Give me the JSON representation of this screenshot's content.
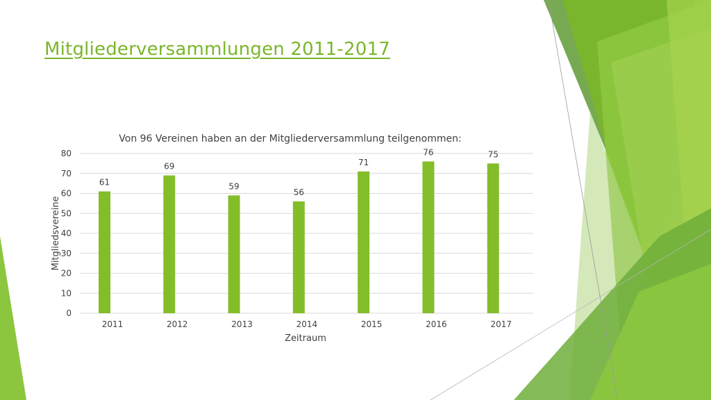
{
  "slide": {
    "title": "Mitgliederversammlungen 2011-2017"
  },
  "theme": {
    "accent": "#7ab62a",
    "bar": "#84bd2a",
    "grid": "#d9d9d9",
    "text": "#404040"
  },
  "chart_data": {
    "type": "bar",
    "title": "Von 96 Vereinen haben an der Mitgliederversammlung teilgenommen:",
    "xlabel": "Zeitraum",
    "ylabel": "Mitgliedsvereine",
    "categories": [
      "2011",
      "2012",
      "2013",
      "2014",
      "2015",
      "2016",
      "2017"
    ],
    "values": [
      61,
      69,
      59,
      56,
      71,
      76,
      75
    ],
    "ylim": [
      0,
      80
    ],
    "yticks": [
      0,
      10,
      20,
      30,
      40,
      50,
      60,
      70,
      80
    ],
    "grid": true,
    "legend": "none",
    "data_labels": true
  }
}
